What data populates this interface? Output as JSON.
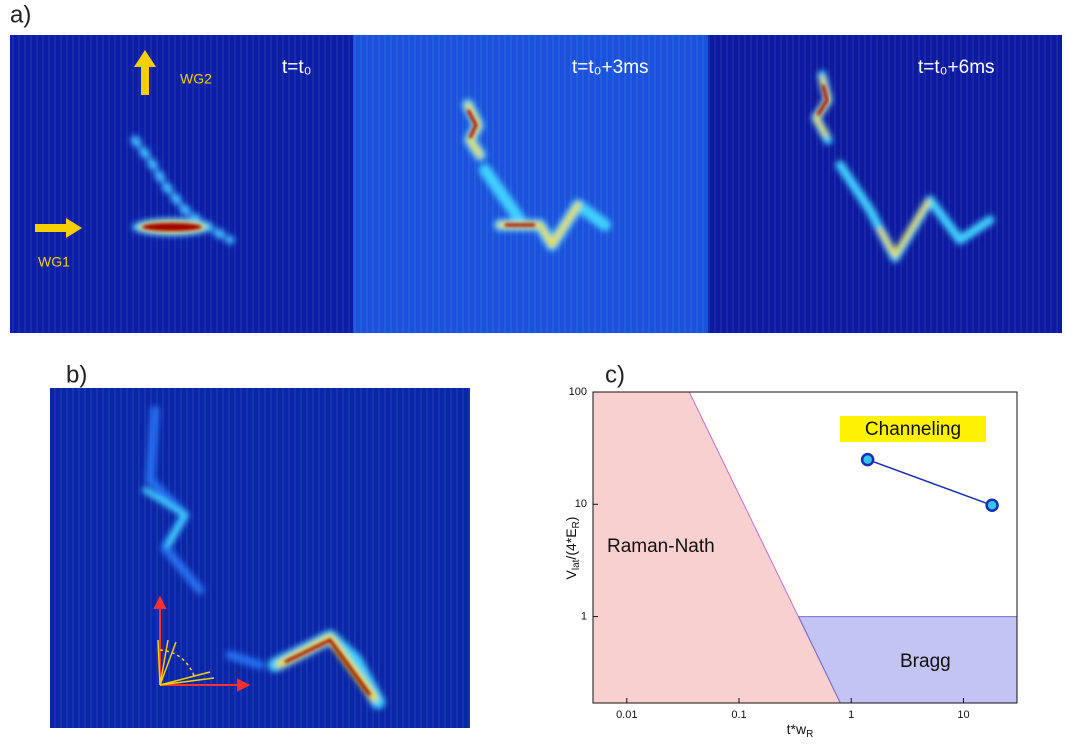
{
  "panels": {
    "a": {
      "label": "a)",
      "frames": [
        {
          "time": "t=t₀"
        },
        {
          "time": "t=t₀+3ms"
        },
        {
          "time": "t=t₀+6ms"
        }
      ],
      "arrows": [
        "WG2",
        "WG1"
      ]
    },
    "b": {
      "label": "b)"
    }
  },
  "chart_data": {
    "type": "scatter",
    "label": "c)",
    "x_label": {
      "main": "t*w",
      "sub": "R"
    },
    "y_label": [
      "V",
      "lat",
      "/(4*E",
      "R",
      ")"
    ],
    "xscale": "log",
    "yscale": "log",
    "xlim": [
      0.005,
      30
    ],
    "ylim": [
      0.17,
      100
    ],
    "xticks": [
      0.01,
      0.1,
      1,
      10
    ],
    "yticks": [
      1,
      10,
      100
    ],
    "x": [
      1.4,
      18
    ],
    "values": [
      25,
      9.8
    ],
    "color": "#1a2fb0",
    "marker_fill": "#33c4f0",
    "regions": [
      {
        "name": "Raman-Nath",
        "color": "#f9d0d0",
        "edge": "#c070e0",
        "x": [
          0.005,
          0.036,
          0.8,
          0.005
        ],
        "y": [
          100,
          100,
          0.17,
          0.17
        ]
      },
      {
        "name": "Bragg",
        "color": "#c4c4f4",
        "edge": "#7070d0",
        "x": [
          0.34,
          30,
          30,
          0.8
        ],
        "y": [
          1,
          1,
          0.17,
          0.17
        ]
      }
    ],
    "annotation": "Channeling",
    "annotation_color": "#fff200"
  }
}
